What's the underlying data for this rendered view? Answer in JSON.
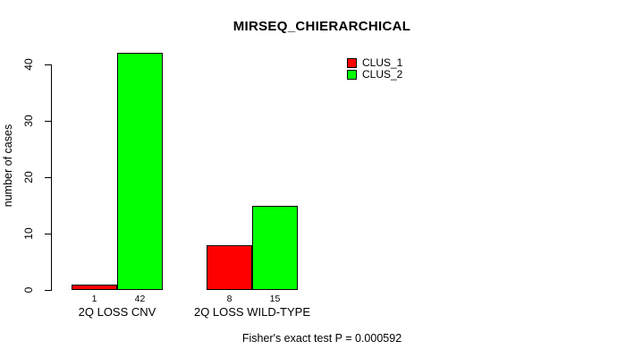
{
  "chart_data": {
    "type": "bar",
    "title": "MIRSEQ_CHIERARCHICAL",
    "ylabel": "number of cases",
    "xlabel": "",
    "categories": [
      "2Q LOSS CNV",
      "2Q LOSS WILD-TYPE"
    ],
    "series": [
      {
        "name": "CLUS_1",
        "color": "#ff0000",
        "values": [
          1,
          8
        ]
      },
      {
        "name": "CLUS_2",
        "color": "#00ff00",
        "values": [
          42,
          15
        ]
      }
    ],
    "bar_value_labels": [
      [
        1,
        42
      ],
      [
        8,
        15
      ]
    ],
    "yticks": [
      0,
      10,
      20,
      30,
      40
    ],
    "ylim": [
      0,
      42
    ],
    "grid": false,
    "legend_position": "top-right",
    "annotation": "Fisher's exact test P = 0.000592"
  },
  "colors": {
    "background": "#ffffff",
    "text": "#000000",
    "axis": "#000000"
  }
}
